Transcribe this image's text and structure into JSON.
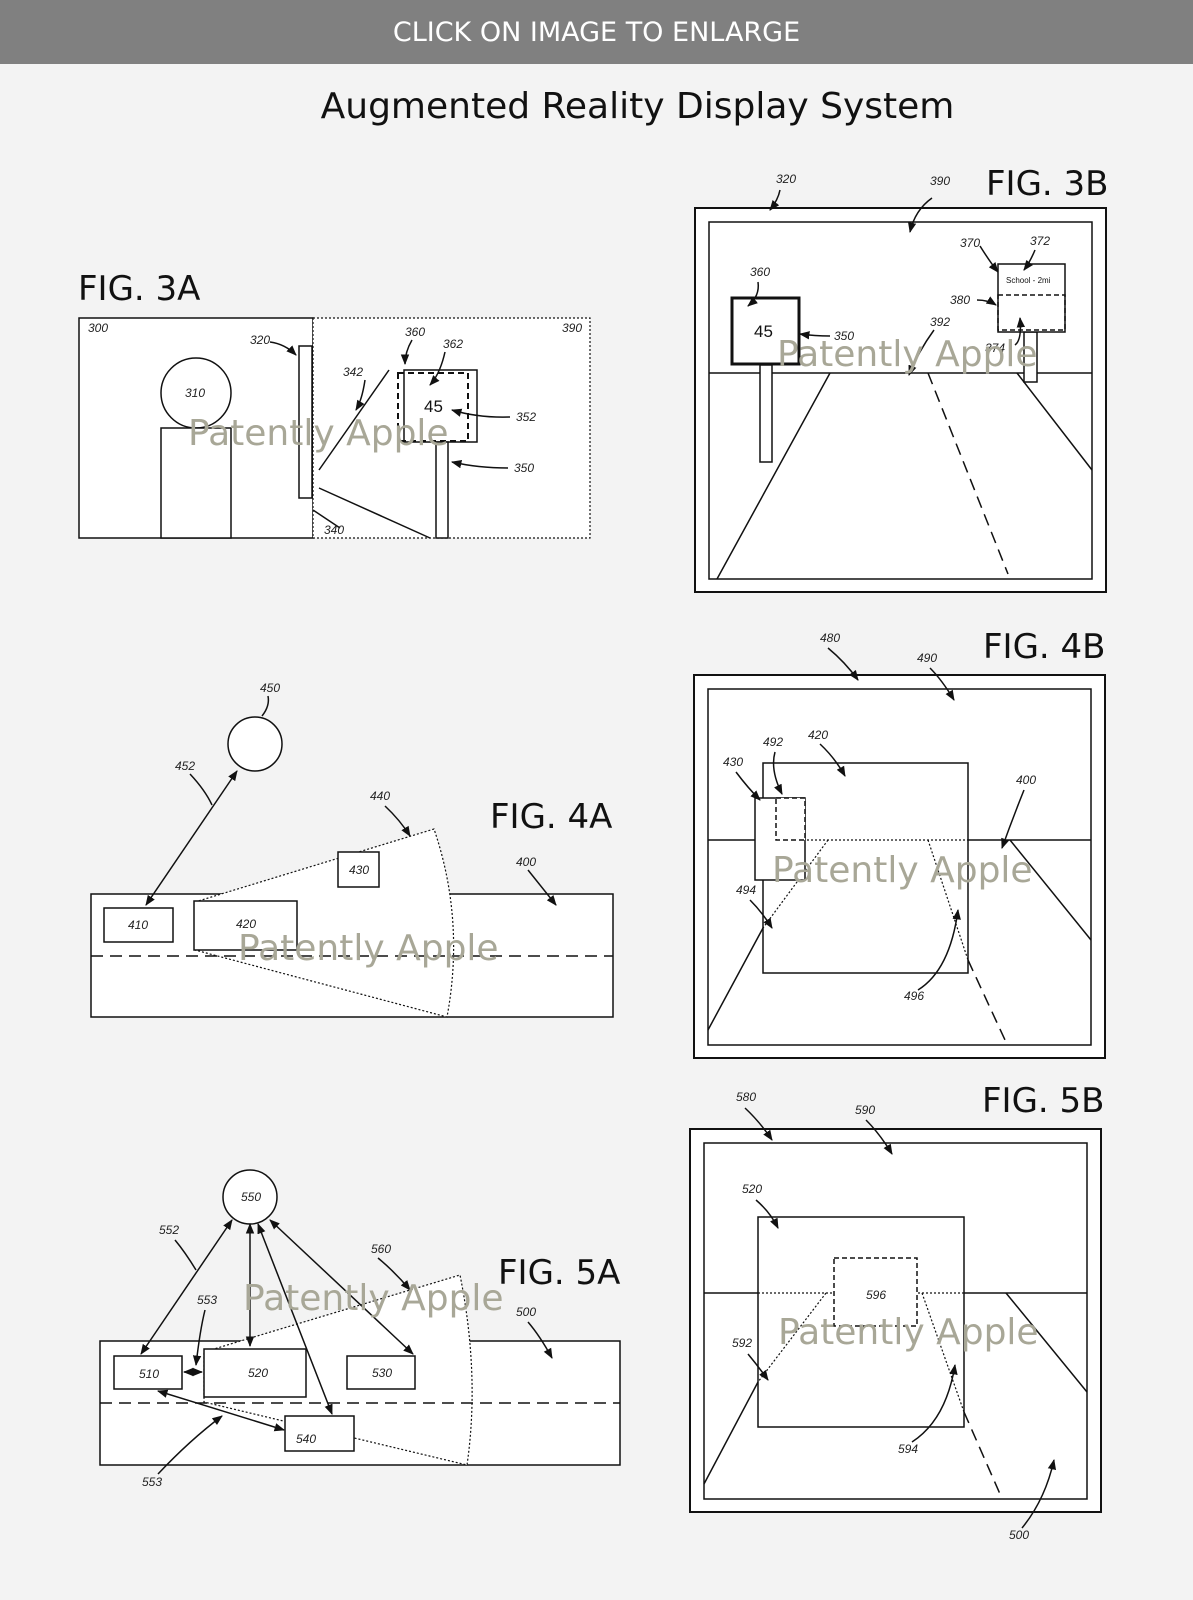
{
  "banner": {
    "text": "CLICK ON IMAGE TO ENLARGE"
  },
  "title": "Augmented Reality Display System",
  "watermark": "Patently Apple",
  "figures": {
    "fig3a": {
      "label": "FIG. 3A",
      "refs": [
        "300",
        "310",
        "320",
        "390",
        "360",
        "362",
        "342",
        "352",
        "350",
        "340"
      ],
      "sign_value": "45"
    },
    "fig3b": {
      "label": "FIG. 3B",
      "refs": [
        "320",
        "390",
        "370",
        "372",
        "360",
        "380",
        "392",
        "374",
        "350"
      ],
      "sign_value": "45",
      "sign_text": "School - 2mi"
    },
    "fig4a": {
      "label": "FIG. 4A",
      "refs": [
        "450",
        "452",
        "440",
        "430",
        "400",
        "410",
        "420"
      ]
    },
    "fig4b": {
      "label": "FIG. 4B",
      "refs": [
        "480",
        "490",
        "492",
        "420",
        "430",
        "400",
        "494",
        "496"
      ]
    },
    "fig5a": {
      "label": "FIG. 5A",
      "refs": [
        "550",
        "552",
        "560",
        "553",
        "500",
        "510",
        "520",
        "530",
        "540",
        "553"
      ]
    },
    "fig5b": {
      "label": "FIG. 5B",
      "refs": [
        "580",
        "590",
        "520",
        "596",
        "592",
        "594",
        "500"
      ]
    }
  }
}
